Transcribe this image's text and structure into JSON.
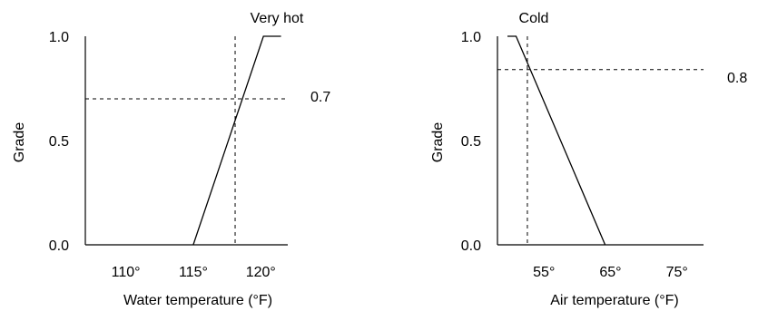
{
  "chart_data": [
    {
      "type": "line",
      "series_label": "Very hot",
      "xlabel": "Water temperature (°F)",
      "ylabel": "Grade",
      "xlim": [
        107,
        122
      ],
      "ylim": [
        0,
        1
      ],
      "x_ticks": [
        {
          "value": 110,
          "label": "110°"
        },
        {
          "value": 115,
          "label": "115°"
        },
        {
          "value": 120,
          "label": "120°"
        }
      ],
      "y_ticks": [
        {
          "value": 0,
          "label": "0.0"
        },
        {
          "value": 0.5,
          "label": "0.5"
        },
        {
          "value": 1,
          "label": "1.0"
        }
      ],
      "series": [
        {
          "x": [
            115,
            120.2,
            121.5
          ],
          "y": [
            0,
            1,
            1
          ]
        }
      ],
      "guides": {
        "x": 118.1,
        "y": 0.7,
        "y_label": "0.7"
      },
      "grid": false
    },
    {
      "type": "line",
      "series_label": "Cold",
      "xlabel": "Air temperature (°F)",
      "ylabel": "Grade",
      "xlim": [
        48,
        79
      ],
      "ylim": [
        0,
        1
      ],
      "x_ticks": [
        {
          "value": 55,
          "label": "55°"
        },
        {
          "value": 65,
          "label": "65°"
        },
        {
          "value": 75,
          "label": "75°"
        }
      ],
      "y_ticks": [
        {
          "value": 0,
          "label": "0.0"
        },
        {
          "value": 0.5,
          "label": "0.5"
        },
        {
          "value": 1,
          "label": "1.0"
        }
      ],
      "series": [
        {
          "x": [
            49.5,
            50.8,
            64.2
          ],
          "y": [
            1,
            1,
            0
          ]
        }
      ],
      "guides": {
        "x": 52.5,
        "y": 0.84,
        "y_label": "0.8"
      },
      "grid": false
    }
  ]
}
